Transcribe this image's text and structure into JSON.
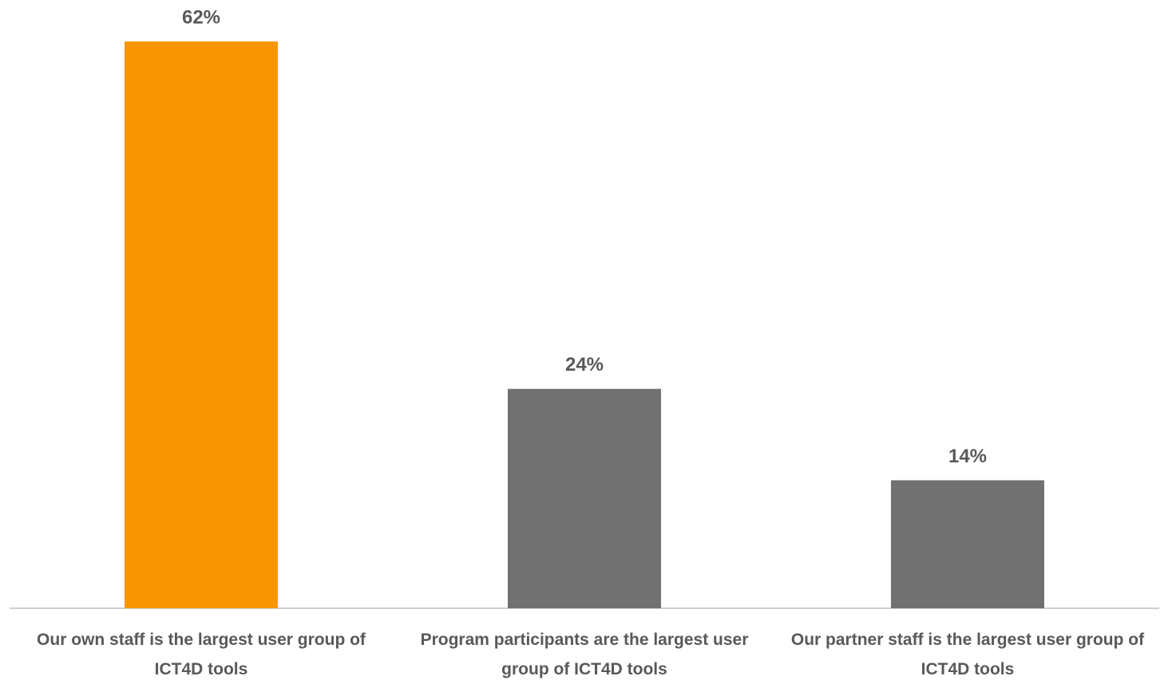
{
  "chart_data": {
    "type": "bar",
    "categories": [
      "Our own staff is the largest user group of ICT4D tools",
      "Program participants are the largest user group of ICT4D tools",
      "Our partner staff is the largest user group of ICT4D tools"
    ],
    "values": [
      62,
      24,
      14
    ],
    "value_labels": [
      "62%",
      "24%",
      "14%"
    ],
    "colors": [
      "#f79600",
      "#717171",
      "#717171"
    ]
  }
}
